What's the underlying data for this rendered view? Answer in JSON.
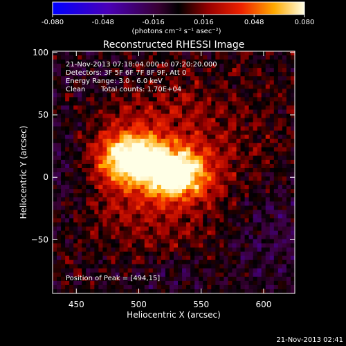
{
  "chart_data": {
    "type": "heatmap",
    "title": "Reconstructed RHESSI Image",
    "xlabel": "Heliocentric X (arcsec)",
    "ylabel": "Heliocentric Y (arcsec)",
    "xlim": [
      431,
      625
    ],
    "ylim": [
      -93,
      101
    ],
    "xticks": [
      450,
      500,
      550,
      600
    ],
    "yticks": [
      -50,
      0,
      50,
      100
    ],
    "colorbar": {
      "range": [
        -0.08,
        0.08
      ],
      "tick_values": [
        -0.08,
        -0.048,
        -0.016,
        0.016,
        0.048,
        0.08
      ],
      "tick_labels": [
        "-0.080",
        "-0.048",
        "-0.016",
        "0.016",
        "0.048",
        "0.080"
      ],
      "units": "(photons cm⁻² s⁻¹ asec⁻²)"
    },
    "sources": [
      {
        "x": 494,
        "y": 15,
        "peak": 0.08
      },
      {
        "x": 530,
        "y": 3,
        "peak": 0.074
      }
    ],
    "peak_position": [
      494,
      15
    ],
    "info": {
      "time": "21-Nov-2013 07:18:04.000 to 07:20:20.000",
      "detectors": "Detectors: 3F 5F 6F 7F 8F 9F, Att 0",
      "energy": "Energy Range: 3.0 - 6.0 keV",
      "method": "Clean",
      "counts": "Total counts: 1.70E+04",
      "peak_text": "Position of Peak = [494,15]"
    },
    "timestamp": "21-Nov-2013 02:41"
  }
}
